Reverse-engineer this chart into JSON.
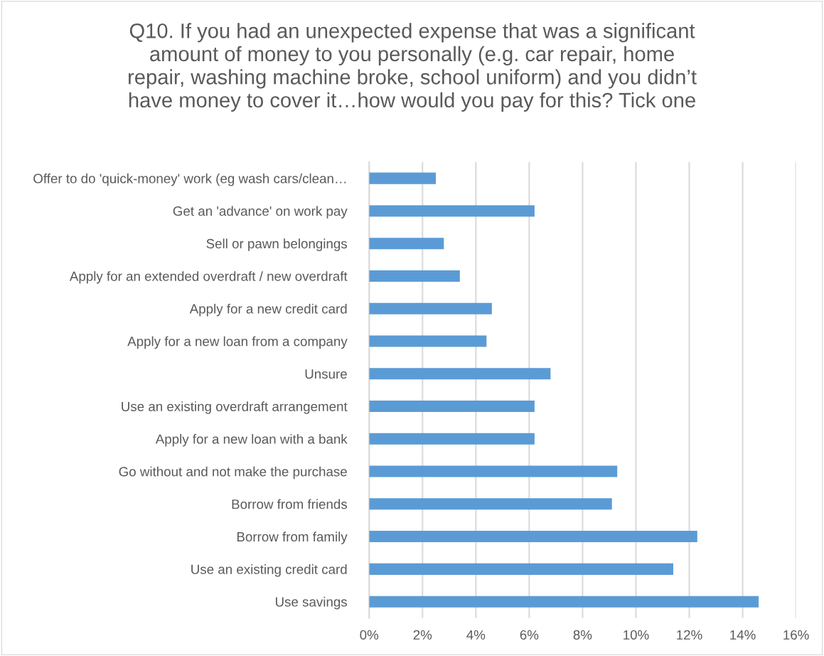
{
  "chart_data": {
    "type": "bar",
    "orientation": "horizontal",
    "title": "Q10. If you had an unexpected expense that was a significant\namount of money to you personally (e.g. car repair, home\nrepair, washing machine broke, school uniform) and you didn’t\nhave money to cover it…how would you pay for this? Tick one",
    "categories": [
      "Offer to do 'quick-money' work (eg wash cars/clean…",
      "Get an 'advance' on work pay",
      "Sell or pawn belongings",
      "Apply for an extended overdraft / new overdraft",
      "Apply for a new credit card",
      "Apply for a new loan from a company",
      "Unsure",
      "Use an existing overdraft arrangement",
      "Apply for a new loan with a bank",
      "Go without and not make the purchase",
      "Borrow from friends",
      "Borrow from family",
      "Use an existing credit card",
      "Use savings"
    ],
    "values": [
      2.5,
      6.2,
      2.8,
      3.4,
      4.6,
      4.4,
      6.8,
      6.2,
      6.2,
      9.3,
      9.1,
      12.3,
      11.4,
      14.6
    ],
    "color": "#5b9bd5",
    "xlim": [
      0,
      16
    ],
    "xticks": [
      {
        "value": 0,
        "label": "0%"
      },
      {
        "value": 2,
        "label": "2%"
      },
      {
        "value": 4,
        "label": "4%"
      },
      {
        "value": 6,
        "label": "6%"
      },
      {
        "value": 8,
        "label": "8%"
      },
      {
        "value": 10,
        "label": "10%"
      },
      {
        "value": 12,
        "label": "12%"
      },
      {
        "value": 14,
        "label": "14%"
      },
      {
        "value": 16,
        "label": "16%"
      }
    ],
    "grid": "x",
    "legend": false
  }
}
